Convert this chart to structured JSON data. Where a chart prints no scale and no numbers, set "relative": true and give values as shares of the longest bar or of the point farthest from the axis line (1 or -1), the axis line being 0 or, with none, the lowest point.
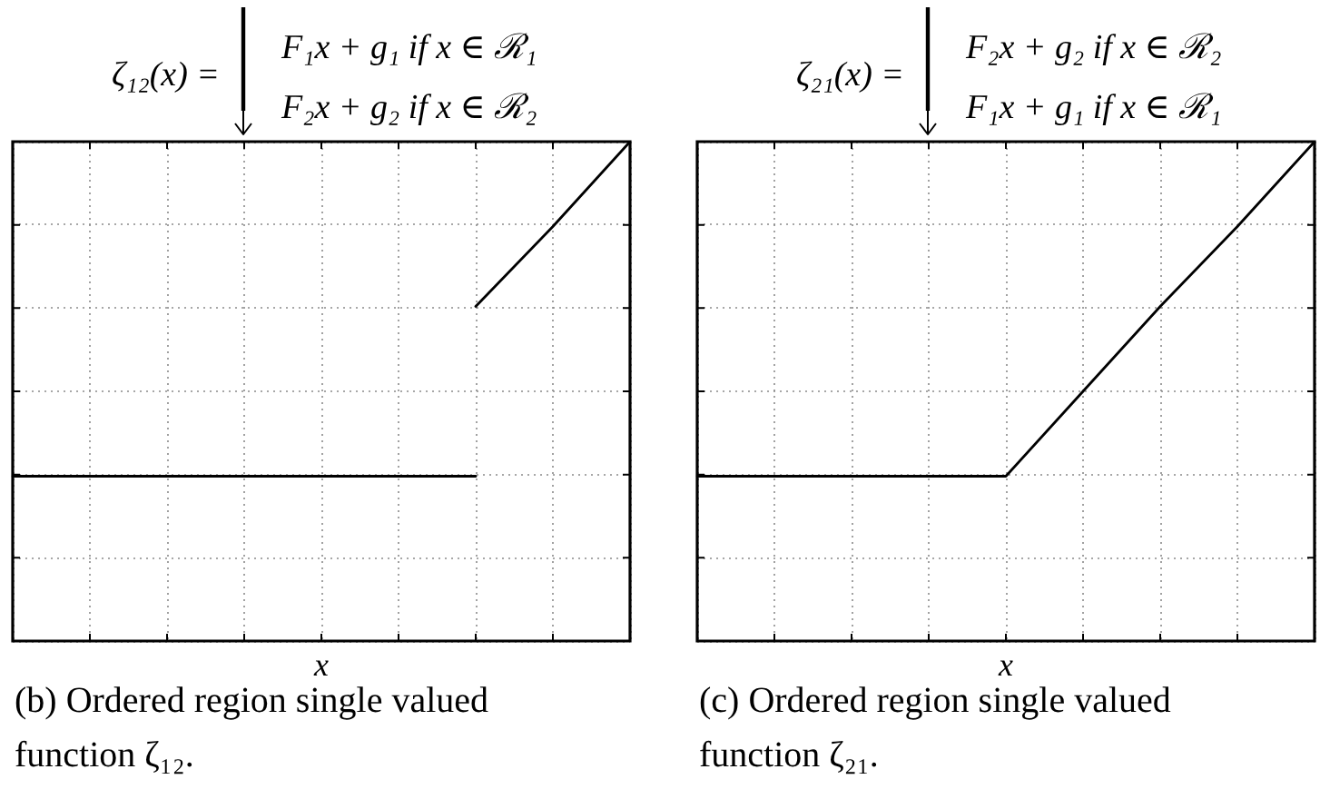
{
  "chart_data": [
    {
      "type": "line",
      "title": "ζ₁₂(x) =",
      "annotations": [
        "F₁x + g₁ if x ∈ ℛ₁",
        "F₂x + g₂ if x ∈ ℛ₂",
        "(b) Ordered region single valued function ζ₁₂."
      ],
      "xlabel": "x",
      "categories": [
        null,
        null,
        null,
        null,
        null,
        null,
        null,
        null,
        null
      ],
      "relative": true,
      "grid": true,
      "series": [
        {
          "color": "#000000",
          "values": [
            0.33,
            0.33,
            0.33,
            0.33,
            0.33,
            0.33,
            0.33,
            null,
            null
          ]
        },
        {
          "color": "#000000",
          "values": [
            null,
            null,
            null,
            null,
            null,
            null,
            0.67,
            0.83,
            1
          ]
        }
      ]
    },
    {
      "type": "line",
      "title": "ζ₂₁(x) =",
      "annotations": [
        "F₂x + g₂ if x ∈ ℛ₂",
        "F₁x + g₁ if x ∈ ℛ₁",
        "(c) Ordered region single valued function ζ₂₁."
      ],
      "xlabel": "x",
      "categories": [
        null,
        null,
        null,
        null,
        null,
        null,
        null,
        null,
        null
      ],
      "relative": true,
      "grid": true,
      "series": [
        {
          "color": "#000000",
          "values": [
            0.33,
            0.33,
            0.33,
            0.33,
            0.33,
            0.5,
            0.67,
            0.83,
            1
          ]
        }
      ]
    }
  ]
}
